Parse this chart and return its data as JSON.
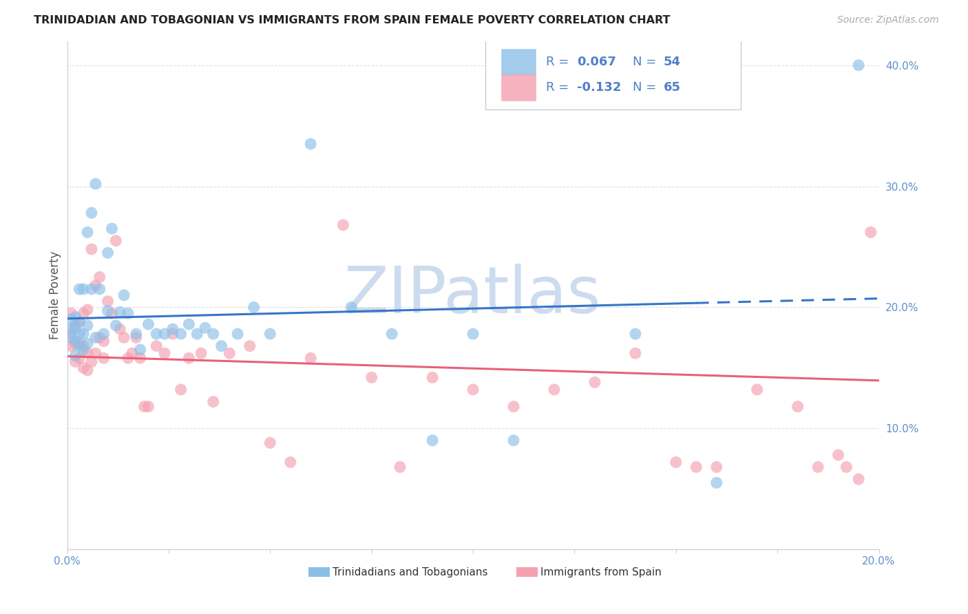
{
  "title": "TRINIDADIAN AND TOBAGONIAN VS IMMIGRANTS FROM SPAIN FEMALE POVERTY CORRELATION CHART",
  "source": "Source: ZipAtlas.com",
  "ylabel": "Female Poverty",
  "x_min": 0.0,
  "x_max": 0.2,
  "y_min": 0.0,
  "y_max": 0.42,
  "y_ticks_right": [
    0.1,
    0.2,
    0.3,
    0.4
  ],
  "y_tick_labels_right": [
    "10.0%",
    "20.0%",
    "30.0%",
    "40.0%"
  ],
  "legend_labels": [
    "Trinidadians and Tobagonians",
    "Immigrants from Spain"
  ],
  "blue_color": "#8bbfe8",
  "pink_color": "#f4a0b0",
  "blue_line_color": "#3575c8",
  "pink_line_color": "#e8607a",
  "legend_text_color": "#5080c8",
  "watermark_zip_color": "#c5d5ec",
  "watermark_atlas_color": "#b8cfe8",
  "grid_color": "#d8dfe8",
  "background_color": "#ffffff",
  "axis_text_color": "#6090cc",
  "blue_R": 0.067,
  "blue_N": 54,
  "pink_R": -0.132,
  "pink_N": 65,
  "blue_scatter_x": [
    0.001,
    0.001,
    0.001,
    0.002,
    0.002,
    0.002,
    0.002,
    0.003,
    0.003,
    0.003,
    0.003,
    0.004,
    0.004,
    0.004,
    0.005,
    0.005,
    0.005,
    0.006,
    0.006,
    0.007,
    0.007,
    0.008,
    0.009,
    0.01,
    0.01,
    0.011,
    0.012,
    0.013,
    0.014,
    0.015,
    0.017,
    0.018,
    0.02,
    0.022,
    0.024,
    0.026,
    0.028,
    0.03,
    0.032,
    0.034,
    0.036,
    0.038,
    0.042,
    0.046,
    0.05,
    0.06,
    0.07,
    0.08,
    0.09,
    0.1,
    0.11,
    0.14,
    0.16,
    0.195
  ],
  "blue_scatter_y": [
    0.175,
    0.182,
    0.19,
    0.16,
    0.172,
    0.183,
    0.192,
    0.168,
    0.178,
    0.188,
    0.215,
    0.165,
    0.178,
    0.215,
    0.17,
    0.185,
    0.262,
    0.215,
    0.278,
    0.175,
    0.302,
    0.215,
    0.178,
    0.245,
    0.197,
    0.265,
    0.185,
    0.196,
    0.21,
    0.195,
    0.178,
    0.165,
    0.186,
    0.178,
    0.178,
    0.182,
    0.178,
    0.186,
    0.178,
    0.183,
    0.178,
    0.168,
    0.178,
    0.2,
    0.178,
    0.335,
    0.2,
    0.178,
    0.09,
    0.178,
    0.09,
    0.178,
    0.055,
    0.4
  ],
  "pink_scatter_x": [
    0.001,
    0.001,
    0.001,
    0.002,
    0.002,
    0.002,
    0.003,
    0.003,
    0.003,
    0.004,
    0.004,
    0.004,
    0.005,
    0.005,
    0.005,
    0.006,
    0.006,
    0.007,
    0.007,
    0.008,
    0.008,
    0.009,
    0.009,
    0.01,
    0.011,
    0.012,
    0.013,
    0.014,
    0.015,
    0.016,
    0.017,
    0.018,
    0.019,
    0.02,
    0.022,
    0.024,
    0.026,
    0.028,
    0.03,
    0.033,
    0.036,
    0.04,
    0.045,
    0.05,
    0.055,
    0.06,
    0.068,
    0.075,
    0.082,
    0.09,
    0.1,
    0.11,
    0.12,
    0.13,
    0.14,
    0.15,
    0.155,
    0.16,
    0.17,
    0.18,
    0.185,
    0.19,
    0.192,
    0.195,
    0.198
  ],
  "pink_scatter_y": [
    0.168,
    0.178,
    0.195,
    0.155,
    0.17,
    0.185,
    0.158,
    0.17,
    0.188,
    0.15,
    0.168,
    0.195,
    0.148,
    0.162,
    0.198,
    0.155,
    0.248,
    0.162,
    0.218,
    0.175,
    0.225,
    0.158,
    0.172,
    0.205,
    0.195,
    0.255,
    0.182,
    0.175,
    0.158,
    0.162,
    0.175,
    0.158,
    0.118,
    0.118,
    0.168,
    0.162,
    0.178,
    0.132,
    0.158,
    0.162,
    0.122,
    0.162,
    0.168,
    0.088,
    0.072,
    0.158,
    0.268,
    0.142,
    0.068,
    0.142,
    0.132,
    0.118,
    0.132,
    0.138,
    0.162,
    0.072,
    0.068,
    0.068,
    0.132,
    0.118,
    0.068,
    0.078,
    0.068,
    0.058,
    0.262
  ]
}
